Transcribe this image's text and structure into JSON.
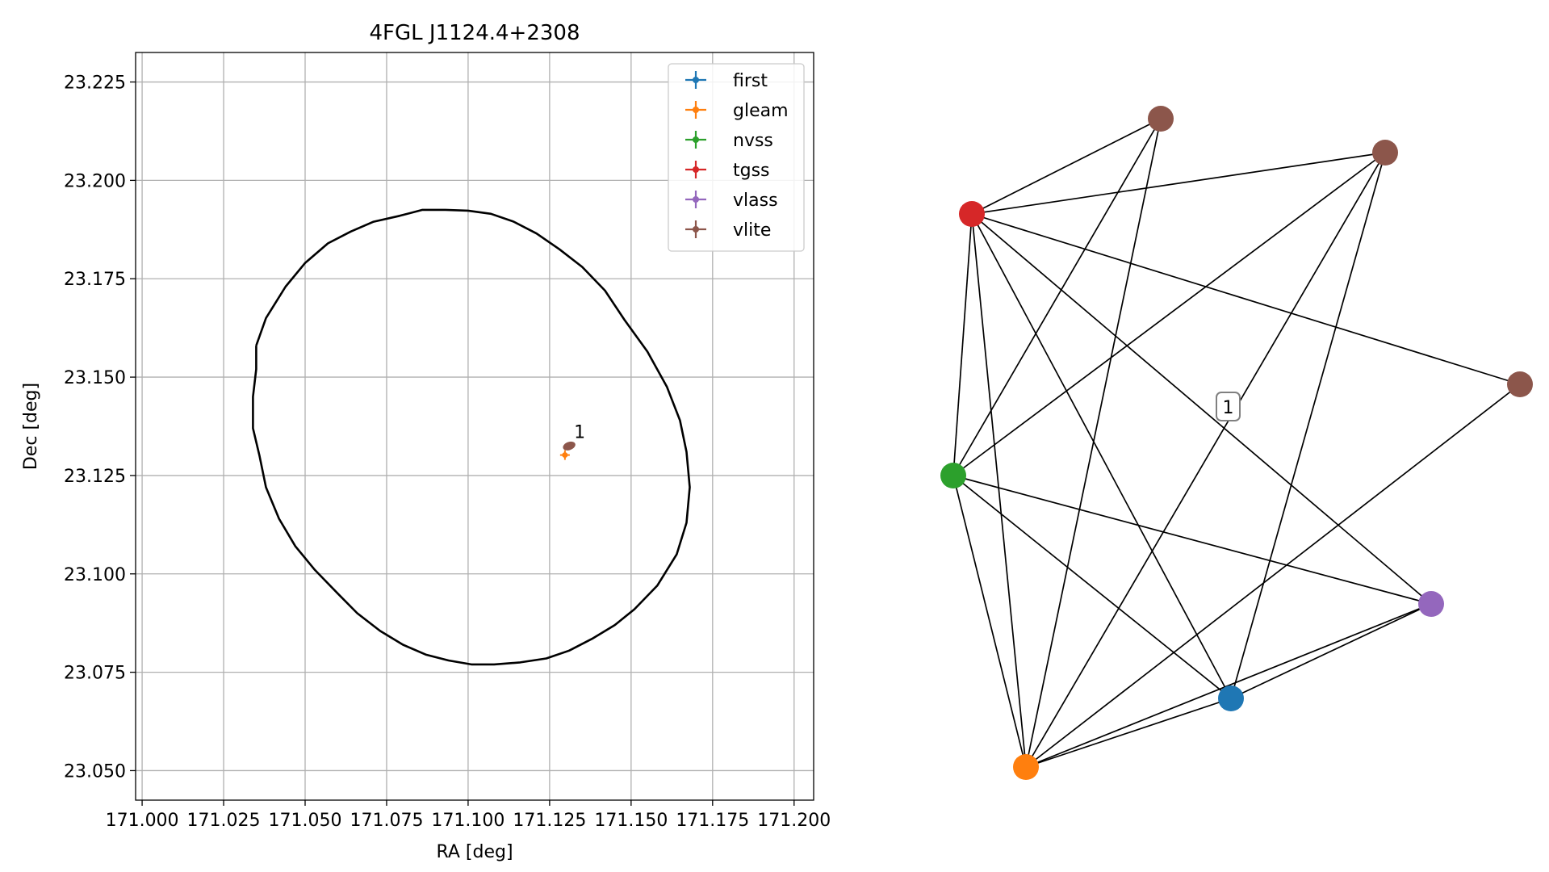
{
  "chart_data": [
    {
      "type": "scatter",
      "title": "4FGL J1124.4+2308",
      "xlabel": "RA [deg]",
      "ylabel": "Dec [deg]",
      "xlim": [
        170.998,
        171.206
      ],
      "ylim": [
        23.0425,
        23.2325
      ],
      "xticks": [
        171.0,
        171.025,
        171.05,
        171.075,
        171.1,
        171.125,
        171.15,
        171.175,
        171.2
      ],
      "xtick_labels": [
        "171.000",
        "171.025",
        "171.050",
        "171.075",
        "171.100",
        "171.125",
        "171.150",
        "171.175",
        "171.200"
      ],
      "yticks": [
        23.05,
        23.075,
        23.1,
        23.125,
        23.15,
        23.175,
        23.2,
        23.225
      ],
      "ytick_labels": [
        "23.050",
        "23.075",
        "23.100",
        "23.125",
        "23.150",
        "23.175",
        "23.200",
        "23.225"
      ],
      "grid": true,
      "legend_placement": "upper right",
      "ellipse": {
        "color": "#000000",
        "points": [
          [
            171.035,
            23.158
          ],
          [
            171.038,
            23.165
          ],
          [
            171.044,
            23.173
          ],
          [
            171.05,
            23.179
          ],
          [
            171.057,
            23.184
          ],
          [
            171.064,
            23.187
          ],
          [
            171.071,
            23.1895
          ],
          [
            171.079,
            23.191
          ],
          [
            171.086,
            23.1925
          ],
          [
            171.093,
            23.1925
          ],
          [
            171.1,
            23.1923
          ],
          [
            171.107,
            23.1915
          ],
          [
            171.114,
            23.1895
          ],
          [
            171.121,
            23.1865
          ],
          [
            171.128,
            23.1825
          ],
          [
            171.135,
            23.178
          ],
          [
            171.142,
            23.172
          ],
          [
            171.148,
            23.1645
          ],
          [
            171.155,
            23.1565
          ],
          [
            171.161,
            23.1475
          ],
          [
            171.165,
            23.139
          ],
          [
            171.167,
            23.131
          ],
          [
            171.168,
            23.122
          ],
          [
            171.167,
            23.113
          ],
          [
            171.164,
            23.105
          ],
          [
            171.158,
            23.097
          ],
          [
            171.151,
            23.091
          ],
          [
            171.145,
            23.087
          ],
          [
            171.138,
            23.0835
          ],
          [
            171.131,
            23.0805
          ],
          [
            171.124,
            23.0785
          ],
          [
            171.116,
            23.0775
          ],
          [
            171.108,
            23.077
          ],
          [
            171.101,
            23.077
          ],
          [
            171.094,
            23.078
          ],
          [
            171.087,
            23.0795
          ],
          [
            171.08,
            23.082
          ],
          [
            171.073,
            23.0855
          ],
          [
            171.066,
            23.09
          ],
          [
            171.06,
            23.095
          ],
          [
            171.053,
            23.101
          ],
          [
            171.047,
            23.107
          ],
          [
            171.042,
            23.114
          ],
          [
            171.038,
            23.122
          ],
          [
            171.036,
            23.13
          ],
          [
            171.034,
            23.137
          ],
          [
            171.034,
            23.145
          ],
          [
            171.035,
            23.152
          ],
          [
            171.035,
            23.158
          ]
        ]
      },
      "series": [
        {
          "name": "first",
          "color": "#1f77b4",
          "points": []
        },
        {
          "name": "gleam",
          "color": "#ff7f0e",
          "points": [
            [
              171.1297,
              23.1302
            ]
          ]
        },
        {
          "name": "nvss",
          "color": "#2ca02c",
          "points": []
        },
        {
          "name": "tgss",
          "color": "#d62728",
          "points": []
        },
        {
          "name": "vlass",
          "color": "#9467bd",
          "points": []
        },
        {
          "name": "vlite",
          "color": "#8c564b",
          "points": [
            [
              171.131,
              23.1325
            ]
          ]
        }
      ],
      "annotations": [
        {
          "text": "1",
          "x": 171.1325,
          "y": 23.1345
        }
      ]
    },
    {
      "type": "network",
      "nodes": [
        {
          "id": "vlite-1",
          "color": "#8c564b"
        },
        {
          "id": "vlite-2",
          "color": "#8c564b"
        },
        {
          "id": "tgss",
          "color": "#d62728"
        },
        {
          "id": "vlite-3",
          "color": "#8c564b"
        },
        {
          "id": "nvss",
          "color": "#2ca02c"
        },
        {
          "id": "vlass",
          "color": "#9467bd"
        },
        {
          "id": "first",
          "color": "#1f77b4"
        },
        {
          "id": "gleam",
          "color": "#ff7f0e"
        }
      ],
      "edges": [
        [
          "tgss",
          "vlite-1"
        ],
        [
          "tgss",
          "vlite-2"
        ],
        [
          "tgss",
          "vlite-3"
        ],
        [
          "tgss",
          "nvss"
        ],
        [
          "tgss",
          "gleam"
        ],
        [
          "tgss",
          "first"
        ],
        [
          "tgss",
          "vlass"
        ],
        [
          "nvss",
          "vlite-1"
        ],
        [
          "nvss",
          "vlite-2"
        ],
        [
          "nvss",
          "gleam"
        ],
        [
          "nvss",
          "first"
        ],
        [
          "nvss",
          "vlass"
        ],
        [
          "gleam",
          "vlite-1"
        ],
        [
          "gleam",
          "vlite-2"
        ],
        [
          "gleam",
          "vlite-3"
        ],
        [
          "gleam",
          "first"
        ],
        [
          "gleam",
          "vlass"
        ],
        [
          "first",
          "vlite-2"
        ],
        [
          "first",
          "vlass"
        ]
      ],
      "label": "1",
      "edge_color": "#000000"
    }
  ]
}
